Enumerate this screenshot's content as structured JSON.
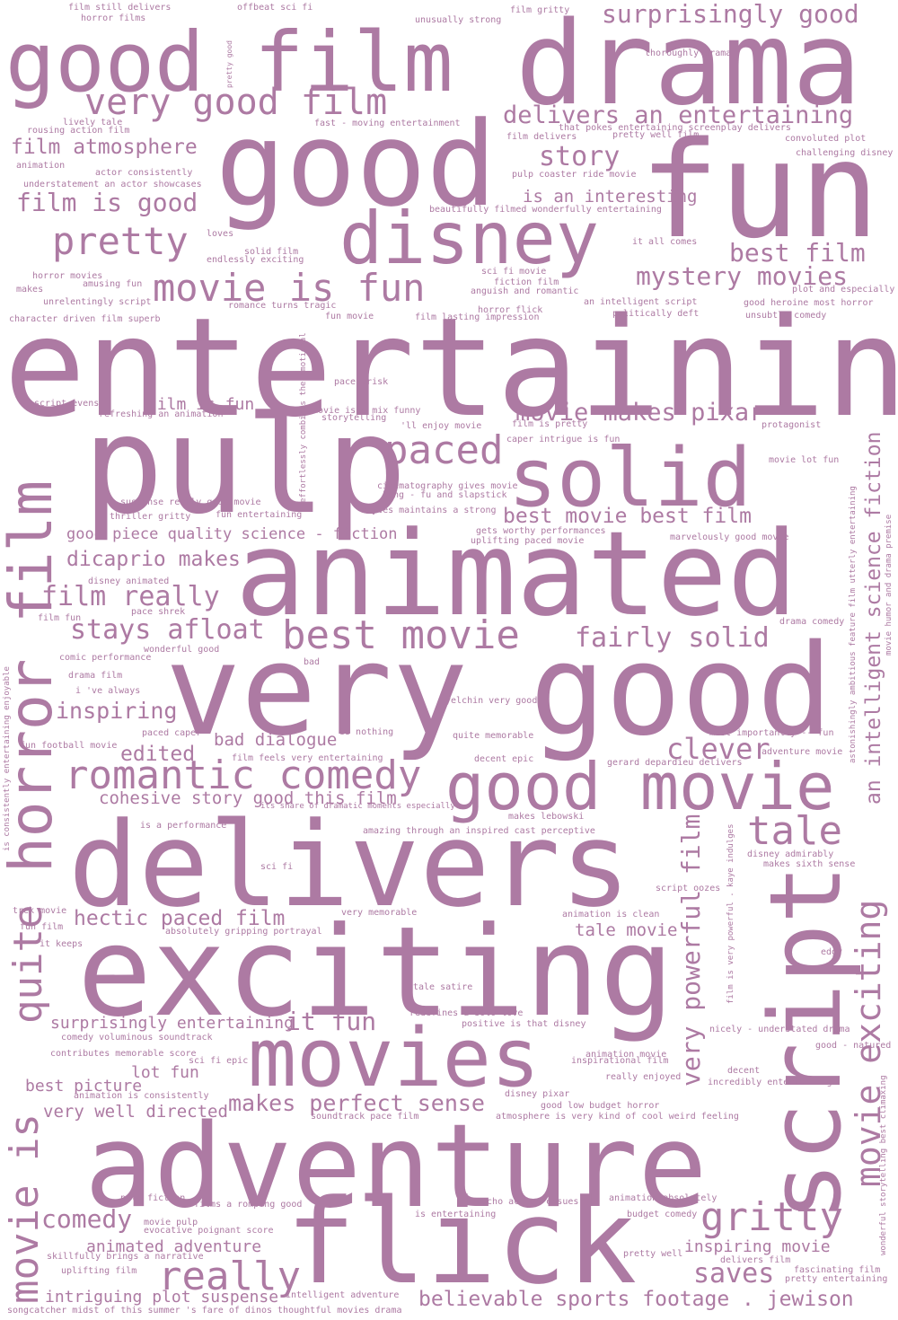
{
  "word_color": "#ad7aa3",
  "background": "#ffffff",
  "words": {
    "good_film": "good film",
    "drama": "drama",
    "good": "good",
    "fun": "fun",
    "very_good_film": "very good film",
    "surprisingly_good": "surprisingly good",
    "delivers_an_entertaining": "delivers an entertaining",
    "disney": "disney",
    "story": "story",
    "film_atmosphere": "film atmosphere",
    "film_is_good": "film is good",
    "pretty": "pretty",
    "is_an_interesting": "is an interesting",
    "best_film": "best film",
    "mystery_movies": "mystery movies",
    "movie_is_fun": "movie is fun",
    "entertaining": "entertaining",
    "pulp": "pulp",
    "paced": "paced",
    "solid": "solid",
    "movie_makes_pixar": "movie makes pixar",
    "film_is_fun": "film is fun",
    "horror_film": "horror film",
    "best_movie_best_film": "best movie best film",
    "animated": "animated",
    "good_piece": "good piece quality science - fiction",
    "dicaprio_makes": "dicaprio makes",
    "film_really": "film really",
    "stays_afloat": "stays afloat",
    "best_movie": "best movie",
    "fairly_solid": "fairly solid",
    "very": "very",
    "very_good": "good",
    "inspiring": "inspiring",
    "bad_dialogue": "bad dialogue",
    "edited": "edited",
    "clever": "clever",
    "romantic_comedy": "romantic comedy",
    "good_movie": "good movie",
    "cohesive_story": "cohesive story good this film",
    "tale": "tale",
    "delivers": "delivers",
    "an_intelligent_science_fiction": "an intelligent science fiction",
    "movie_exciting": "movie exciting",
    "script": "script",
    "exciting": "exciting",
    "hectic_paced_film": "hectic paced film",
    "tale_movie": "tale movie",
    "very_powerful_film": "very powerful film",
    "quite": "quite",
    "movies": "movies",
    "it_fun": "it fun",
    "surprisingly_entertaining": "surprisingly entertaining",
    "lot_fun": "lot fun",
    "best_picture": "best picture",
    "makes_perfect_sense": "makes perfect sense",
    "very_well_directed": "very well directed",
    "adventure": "adventure",
    "movie_is": "movie is",
    "comedy": "comedy",
    "flick": "flick",
    "gritty": "gritty",
    "animated_adventure": "animated adventure",
    "inspiring_movie": "inspiring movie",
    "really": "really",
    "saves": "saves",
    "intriguing_plot_suspense": "intriguing plot suspense",
    "believable": "believable sports footage . jewison",
    "s_film_still_delivers": "film still delivers",
    "s_horror_films": "horror films",
    "s_offbeat_sci_fi": "offbeat sci fi",
    "s_film_gritty": "film gritty",
    "s_unusually_strong": "unusually strong",
    "s_thoroughly_drama": "thoroughly drama",
    "s_pretty_good": "pretty good",
    "s_lively_tale": "lively tale",
    "s_rousing_action_film": "rousing action film",
    "s_fast_moving": "fast - moving entertainment",
    "s_that_pokes": "that pokes entertaining screenplay delivers",
    "s_film_delivers": "film delivers",
    "s_pretty_well_film": "pretty well film",
    "s_convoluted_plot": "convoluted plot",
    "s_animation": "animation",
    "s_actor_consistently": "actor consistently",
    "s_pulp_coaster": "pulp coaster ride movie",
    "s_challenging_disney": "challenging disney",
    "s_understatement": "understatement an actor showcases",
    "s_beautifully_filmed": "beautifully filmed wonderfully entertaining",
    "s_loves": "loves",
    "s_it_all_comes": "it all comes",
    "s_solid_film": "solid film",
    "s_endlessly_exciting": "endlessly exciting",
    "s_horror_movies": "horror movies",
    "s_amusing_fun": "amusing fun",
    "s_makes": "makes",
    "s_sci_fi_movie": "sci fi movie",
    "s_fiction_film": "fiction film",
    "s_anguish": "anguish and romantic",
    "s_unrelentingly_script": "unrelentingly script",
    "s_an_intelligent_script": "an intelligent script",
    "s_good_heroine": "good heroine most horror",
    "s_plot_and_especially": "plot and especially",
    "s_romance_turns_tragic": "romance turns tragic",
    "s_horror_flick": "horror flick",
    "s_politically_deft": "politically deft",
    "s_unsubtle_comedy": "unsubtle comedy",
    "s_character_driven": "character driven film superb",
    "s_fun_movie": "fun movie",
    "s_film_lasting": "film lasting impression",
    "s_pace_brisk": "pace brisk",
    "s_effortlessly": "effortlessly combines the emotional",
    "s_script_evens": "script evens",
    "s_refreshing": "refreshing an animation",
    "s_movie_is_a_mix": "movie is a mix funny",
    "s_storytelling": "storytelling",
    "s_ll_enjoy_movie": "'ll enjoy movie",
    "s_film_is_pretty": "film is pretty",
    "s_protagonist": "protagonist",
    "s_caper_intrigue": "caper intrigue is fun",
    "s_movie_lot_fun": "movie lot fun",
    "s_cinematography": "cinematography gives movie",
    "s_kung_fu": "kung - fu and slapstick",
    "s_suspense": "suspense really good movie",
    "s_thriller_gritty": "thriller gritty",
    "s_fun_entertaining": "fun entertaining",
    "s_sayles": "sayles maintains a strong",
    "s_astonishingly": "astonishingly ambitious feature film utterly entertaining",
    "s_gets_worthy": "gets worthy performances",
    "s_uplifting_paced": "uplifting paced movie",
    "s_marvelously": "marvelously good movie",
    "s_movie_humor": "movie humor and drama premise",
    "s_disney_animated": "disney animated",
    "s_pace_shrek": "pace shrek",
    "s_film_fun": "film fun",
    "s_drama_comedy": "drama comedy",
    "s_wonderful_good": "wonderful good",
    "s_comic_performance": "comic performance",
    "s_bad": "bad",
    "s_drama_film": "drama film",
    "s_i_ve_always": "i 've always",
    "s_yelchin": "yelchin very good",
    "s_is_consistently": "is consistently entertaining enjoyable",
    "s_paced_caper": "paced caper",
    "s_is_nothing": "is nothing",
    "s_quite_memorable": "quite memorable",
    "s_most_importantly": "most importantly -- fun",
    "s_fun_football": "fun football movie",
    "s_adventure_movie": "adventure movie",
    "s_film_feels": "film feels very entertaining",
    "s_decent_epic": "decent epic",
    "s_gerard": "gerard depardieu delivers",
    "s_its_share": "its share of dramatic moments especially",
    "s_makes_lebowski": "makes lebowski",
    "s_is_a_performance": "is a performance",
    "s_amazing_through": "amazing through an inspired cast perceptive",
    "s_film_is_very_powerful": "film is very powerful . kaye indulges",
    "s_disney_admirably": "disney admirably",
    "s_makes_sixth_sense": "makes sixth sense",
    "s_sci_fi": "sci fi",
    "s_script_oozes": "script oozes",
    "s_trek_movie": "trek movie",
    "s_very_memorable": "very memorable",
    "s_animation_is_clean": "animation is clean",
    "s_fun_film": "fun film",
    "s_absolutely_gripping": "absolutely gripping portrayal",
    "s_it_keeps": "it keeps",
    "s_edgy": "edgy",
    "s_tale_satire": "tale satire",
    "s_redefines": "redefines a solo love",
    "s_positive": "positive is that disney",
    "s_nicely_understated": "nicely - understated drama",
    "s_comedy_voluminous": "comedy voluminous soundtrack",
    "s_good_natured": "good - natured",
    "s_contributes": "contributes memorable score",
    "s_animation_movie": "animation movie",
    "s_inspirational_film": "inspirational film",
    "s_sci_fi_epic": "sci fi epic",
    "s_decent": "decent",
    "s_really_enjoyed": "really enjoyed",
    "s_incredibly_entertaining": "incredibly entertaining",
    "s_animation_is_consistently": "animation is consistently",
    "s_disney_pixar": "disney pixar",
    "s_good_low_budget": "good low budget horror",
    "s_wonderful_storytelling": "wonderful storytelling best climaxing",
    "s_soundtrack_pace": "soundtrack pace film",
    "s_atmosphere_is_very": "atmosphere is very kind of cool weird feeling",
    "s_pulp_fiction": "pulp fiction",
    "s_films_a_romping": "films a romping good",
    "s_mucho_action": "mucho action ensues",
    "s_animation_absolutely": "animation absolutely",
    "s_movie_pulp": "movie pulp",
    "s_is_entertaining": "is entertaining",
    "s_budget_comedy": "budget comedy",
    "s_evocative": "evocative poignant score",
    "s_skillfully": "skillfully brings a narrative",
    "s_pretty_well": "pretty well",
    "s_delivers_film": "delivers film",
    "s_uplifting_film": "uplifting film",
    "s_fascinating_film": "fascinating film",
    "s_pretty_entertaining": "pretty entertaining",
    "s_intelligent_adventure": "intelligent adventure",
    "s_songcatcher": "songcatcher midst of this summer 's fare of dinos thoughtful movies drama"
  }
}
